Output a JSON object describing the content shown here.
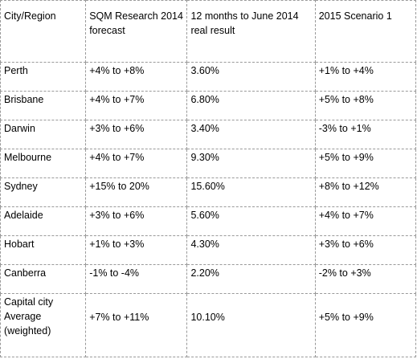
{
  "table": {
    "headers": [
      "City/Region",
      "SQM Research 2014 forecast",
      "12 months to June 2014 real result",
      "2015  Scenario 1"
    ],
    "rows": [
      [
        "Perth",
        "+4% to +8%",
        "3.60%",
        "+1% to +4%"
      ],
      [
        "Brisbane",
        "+4% to +7%",
        "6.80%",
        "+5% to +8%"
      ],
      [
        "Darwin",
        "+3% to +6%",
        "3.40%",
        "-3% to +1%"
      ],
      [
        "Melbourne",
        "+4% to +7%",
        "9.30%",
        "+5% to +9%"
      ],
      [
        "Sydney",
        "+15% to 20%",
        "15.60%",
        "+8% to +12%"
      ],
      [
        "Adelaide",
        "+3% to +6%",
        "5.60%",
        "+4% to +7%"
      ],
      [
        "Hobart",
        "+1% to +3%",
        "4.30%",
        "+3% to +6%"
      ],
      [
        "Canberra",
        "-1% to -4%",
        "2.20%",
        "-2% to +3%"
      ],
      [
        "Capital city Average (weighted)",
        "+7% to +11%",
        "10.10%",
        "+5% to +9%"
      ]
    ]
  }
}
